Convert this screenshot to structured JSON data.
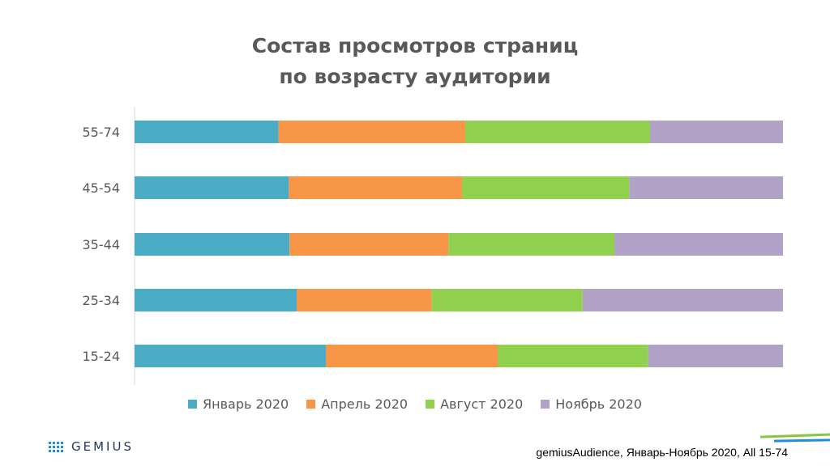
{
  "chart_data": {
    "type": "bar",
    "orientation": "horizontal",
    "stacked": "percent",
    "title_lines": [
      "Состав просмотров страниц",
      "по возрасту аудитории"
    ],
    "categories": [
      "55-74",
      "45-54",
      "35-44",
      "25-34",
      "15-24"
    ],
    "series": [
      {
        "name": "Январь 2020",
        "color": "#4bacc6",
        "values": [
          22.2,
          23.8,
          23.9,
          25.0,
          29.5
        ]
      },
      {
        "name": "Апрель 2020",
        "color": "#f79646",
        "values": [
          28.8,
          26.7,
          24.5,
          20.8,
          26.5
        ]
      },
      {
        "name": "Август 2020",
        "color": "#92d050",
        "values": [
          28.5,
          25.8,
          25.6,
          23.3,
          23.2
        ]
      },
      {
        "name": "Ноябрь 2020",
        "color": "#b3a2c7",
        "values": [
          20.5,
          23.7,
          26.0,
          30.9,
          20.8
        ]
      }
    ],
    "xlim": [
      0,
      100
    ],
    "grid": false,
    "legend_position": "bottom"
  },
  "footer": {
    "brand": "GEMIUS",
    "source": "gemiusAudience, Январь-Ноябрь 2020, All 15-74"
  },
  "colors": {
    "text": "#595959",
    "brand_blue": "#1f8fd6",
    "brand_green": "#8cc63f"
  }
}
